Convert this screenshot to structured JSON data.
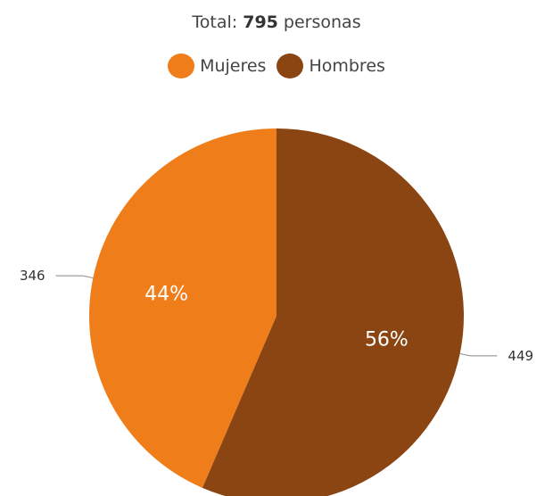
{
  "chart_data": {
    "type": "pie",
    "title_prefix": "Total: ",
    "total_value": "795",
    "title_suffix": " personas",
    "slices": [
      {
        "name": "Mujeres",
        "value": 346,
        "percent_label": "44%",
        "color": "#ef7d1a"
      },
      {
        "name": "Hombres",
        "value": 449,
        "percent_label": "56%",
        "color": "#8b4513"
      }
    ],
    "legend_position": "top"
  }
}
